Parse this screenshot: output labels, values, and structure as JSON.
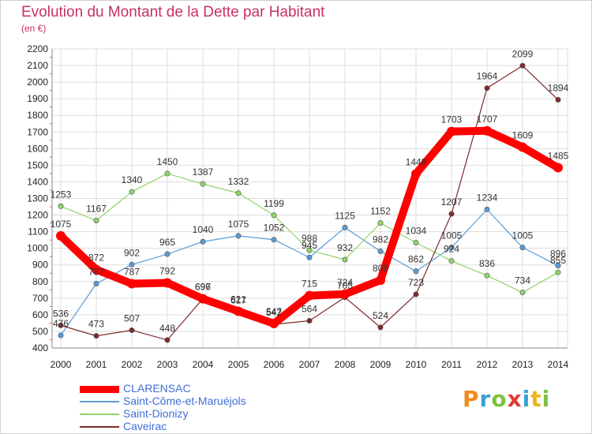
{
  "title": "Evolution du Montant de la Dette par Habitant",
  "subtitle": "(en €)",
  "logo": {
    "text": "Proxiti",
    "colors": [
      "#f08a1c",
      "#3aa0d8",
      "#7cc242",
      "#e03a3a",
      "#3aa0d8",
      "#f0b41c",
      "#7cc242"
    ]
  },
  "chart_data": {
    "type": "line",
    "categories": [
      "2000",
      "2001",
      "2002",
      "2003",
      "2004",
      "2005",
      "2006",
      "2007",
      "2008",
      "2009",
      "2010",
      "2011",
      "2012",
      "2013",
      "2014"
    ],
    "ylim": [
      400,
      2200
    ],
    "yticks": [
      "400",
      "500",
      "600",
      "700",
      "800",
      "900",
      "1000",
      "1100",
      "1200",
      "1300",
      "1400",
      "1500",
      "1600",
      "1700",
      "1800",
      "1900",
      "2000",
      "2100",
      "2200"
    ],
    "grid": true,
    "legend_position": "bottom-left",
    "series": [
      {
        "name": "Saint-Côme-et-Maruéjols",
        "color": "#5b9bd5",
        "values": [
          476,
          787,
          902,
          965,
          1040,
          1075,
          1052,
          945,
          1125,
          982,
          862,
          1005,
          1234,
          1005,
          896
        ]
      },
      {
        "name": "Saint-Dionizy",
        "color": "#8fd36a",
        "values": [
          1253,
          1167,
          1340,
          1450,
          1387,
          1332,
          1199,
          988,
          932,
          1152,
          1034,
          924,
          836,
          734,
          855
        ]
      },
      {
        "name": "Caveirac",
        "color": "#7f2a2a",
        "values": [
          536,
          473,
          507,
          448,
          697,
          617,
          542,
          564,
          705,
          524,
          723,
          1207,
          1964,
          2099,
          1894
        ]
      },
      {
        "name": "CLARENSAC",
        "color": "#ff0000",
        "values": [
          1075,
          872,
          787,
          792,
          696,
          621,
          547,
          715,
          724,
          808,
          1448,
          1703,
          1707,
          1609,
          1485
        ]
      }
    ]
  }
}
